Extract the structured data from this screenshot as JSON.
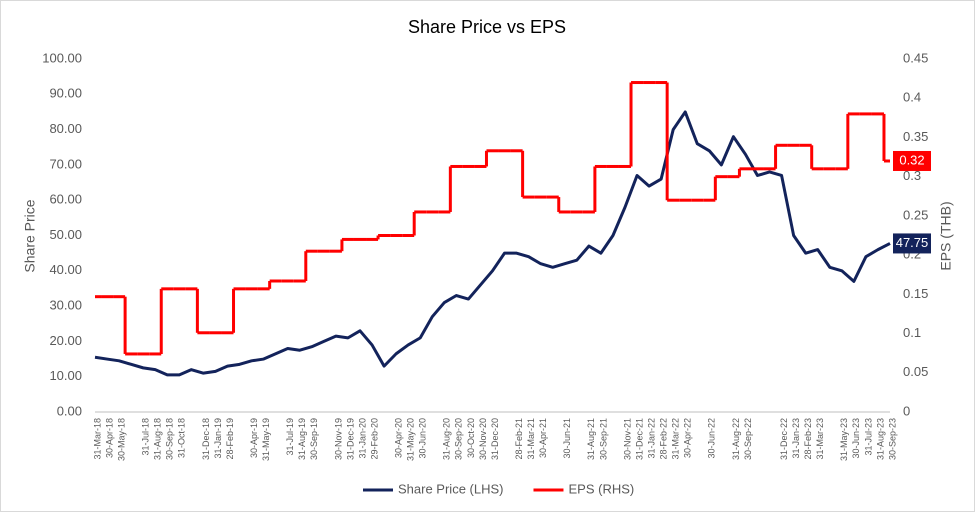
{
  "chart_data": {
    "type": "line",
    "title": "Share Price vs EPS",
    "y_label": "Share Price",
    "y2_label": "EPS (THB)",
    "categories": [
      "31-Mar-18",
      "30-Apr-18",
      "30-May-18",
      null,
      "31-Jul-18",
      "31-Aug-18",
      "30-Sep-18",
      "31-Oct-18",
      null,
      "31-Dec-18",
      "31-Jan-19",
      "28-Feb-19",
      null,
      "30-Apr-19",
      "31-May-19",
      null,
      "31-Jul-19",
      "31-Aug-19",
      "30-Sep-19",
      null,
      "30-Nov-19",
      "31-Dec-19",
      "31-Jan-20",
      "29-Feb-20",
      null,
      "30-Apr-20",
      "31-May-20",
      "30-Jun-20",
      null,
      "31-Aug-20",
      "30-Sep-20",
      "30-Oct-20",
      "30-Nov-20",
      "31-Dec-20",
      null,
      "28-Feb-21",
      "31-Mar-21",
      "30-Apr-21",
      null,
      "30-Jun-21",
      null,
      "31-Aug-21",
      "30-Sep-21",
      null,
      "30-Nov-21",
      "31-Dec-21",
      "31-Jan-22",
      "28-Feb-22",
      "31-Mar-22",
      "30-Apr-22",
      null,
      "30-Jun-22",
      null,
      "31-Aug-22",
      "30-Sep-22",
      null,
      null,
      "31-Dec-22",
      "31-Jan-23",
      "28-Feb-23",
      "31-Mar-23",
      null,
      "31-May-23",
      "30-Jun-23",
      "31-Jul-23",
      "31-Aug-23",
      "30-Sep-23"
    ],
    "series": [
      {
        "name": "Share Price (LHS)",
        "color": "#13235b",
        "axis": "y",
        "values": [
          15.5,
          15,
          14.5,
          13.5,
          12.5,
          12,
          10.5,
          10.5,
          12,
          11,
          11.5,
          13,
          13.5,
          14.5,
          15,
          16.5,
          18,
          17.5,
          18.5,
          20,
          21.5,
          21,
          23,
          19,
          13,
          16.5,
          19,
          21,
          27,
          31,
          33,
          32,
          36,
          40,
          45,
          45,
          44,
          42,
          41,
          42,
          43,
          47,
          45,
          50,
          58,
          67,
          64,
          66,
          80,
          85,
          76,
          74,
          70,
          78,
          73,
          67,
          68,
          67,
          50,
          45,
          46,
          41,
          40,
          37,
          44,
          46,
          47.75
        ],
        "value_labels": {
          "66": "47.75"
        }
      },
      {
        "name": "EPS (RHS)",
        "color": "#ff0000",
        "axis": "y2",
        "values": [
          0.147,
          0.147,
          0.147,
          0.074,
          0.074,
          0.074,
          0.157,
          0.157,
          0.157,
          0.101,
          0.101,
          0.101,
          0.157,
          0.157,
          0.157,
          0.167,
          0.167,
          0.167,
          0.205,
          0.205,
          0.205,
          0.22,
          0.22,
          0.22,
          0.225,
          0.225,
          0.225,
          0.255,
          0.255,
          0.255,
          0.313,
          0.313,
          0.313,
          0.333,
          0.333,
          0.333,
          0.274,
          0.274,
          0.274,
          0.255,
          0.255,
          0.255,
          0.313,
          0.313,
          0.313,
          0.42,
          0.42,
          0.42,
          0.27,
          0.27,
          0.27,
          0.27,
          0.3,
          0.3,
          0.31,
          0.31,
          0.31,
          0.34,
          0.34,
          0.34,
          0.31,
          0.31,
          0.31,
          0.38,
          0.38,
          0.38,
          0.32
        ],
        "value_labels": {
          "66": "0.32"
        }
      }
    ],
    "ylim": [
      0,
      100
    ],
    "yticks": [
      {
        "value": 0,
        "label": "0.00"
      },
      {
        "value": 10,
        "label": "10.00"
      },
      {
        "value": 20,
        "label": "20.00"
      },
      {
        "value": 30,
        "label": "30.00"
      },
      {
        "value": 40,
        "label": "40.00"
      },
      {
        "value": 50,
        "label": "50.00"
      },
      {
        "value": 60,
        "label": "60.00"
      },
      {
        "value": 70,
        "label": "70.00"
      },
      {
        "value": 80,
        "label": "80.00"
      },
      {
        "value": 90,
        "label": "90.00"
      },
      {
        "value": 100,
        "label": "100.00"
      }
    ],
    "y2lim": [
      0,
      0.45
    ],
    "y2ticks": [
      0,
      0.05,
      0.1,
      0.15,
      0.2,
      0.25,
      0.3,
      0.35,
      0.4,
      0.45
    ],
    "legend": "bottom"
  }
}
